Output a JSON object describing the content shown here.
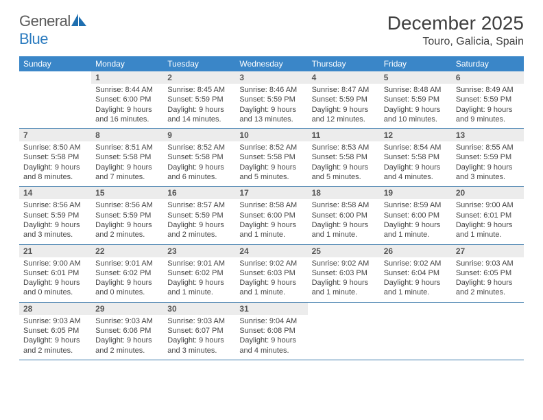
{
  "logo": {
    "text1": "General",
    "text2": "Blue"
  },
  "title": "December 2025",
  "location": "Touro, Galicia, Spain",
  "colors": {
    "header_bg": "#3a86c8",
    "daynum_bg": "#ececec",
    "border": "#3a78aa",
    "logo_blue": "#2b7bbf",
    "text": "#404040"
  },
  "day_names": [
    "Sunday",
    "Monday",
    "Tuesday",
    "Wednesday",
    "Thursday",
    "Friday",
    "Saturday"
  ],
  "weeks": [
    [
      null,
      {
        "n": "1",
        "sr": "8:44 AM",
        "ss": "6:00 PM",
        "dl": "9 hours and 16 minutes."
      },
      {
        "n": "2",
        "sr": "8:45 AM",
        "ss": "5:59 PM",
        "dl": "9 hours and 14 minutes."
      },
      {
        "n": "3",
        "sr": "8:46 AM",
        "ss": "5:59 PM",
        "dl": "9 hours and 13 minutes."
      },
      {
        "n": "4",
        "sr": "8:47 AM",
        "ss": "5:59 PM",
        "dl": "9 hours and 12 minutes."
      },
      {
        "n": "5",
        "sr": "8:48 AM",
        "ss": "5:59 PM",
        "dl": "9 hours and 10 minutes."
      },
      {
        "n": "6",
        "sr": "8:49 AM",
        "ss": "5:59 PM",
        "dl": "9 hours and 9 minutes."
      }
    ],
    [
      {
        "n": "7",
        "sr": "8:50 AM",
        "ss": "5:58 PM",
        "dl": "9 hours and 8 minutes."
      },
      {
        "n": "8",
        "sr": "8:51 AM",
        "ss": "5:58 PM",
        "dl": "9 hours and 7 minutes."
      },
      {
        "n": "9",
        "sr": "8:52 AM",
        "ss": "5:58 PM",
        "dl": "9 hours and 6 minutes."
      },
      {
        "n": "10",
        "sr": "8:52 AM",
        "ss": "5:58 PM",
        "dl": "9 hours and 5 minutes."
      },
      {
        "n": "11",
        "sr": "8:53 AM",
        "ss": "5:58 PM",
        "dl": "9 hours and 5 minutes."
      },
      {
        "n": "12",
        "sr": "8:54 AM",
        "ss": "5:58 PM",
        "dl": "9 hours and 4 minutes."
      },
      {
        "n": "13",
        "sr": "8:55 AM",
        "ss": "5:59 PM",
        "dl": "9 hours and 3 minutes."
      }
    ],
    [
      {
        "n": "14",
        "sr": "8:56 AM",
        "ss": "5:59 PM",
        "dl": "9 hours and 3 minutes."
      },
      {
        "n": "15",
        "sr": "8:56 AM",
        "ss": "5:59 PM",
        "dl": "9 hours and 2 minutes."
      },
      {
        "n": "16",
        "sr": "8:57 AM",
        "ss": "5:59 PM",
        "dl": "9 hours and 2 minutes."
      },
      {
        "n": "17",
        "sr": "8:58 AM",
        "ss": "6:00 PM",
        "dl": "9 hours and 1 minute."
      },
      {
        "n": "18",
        "sr": "8:58 AM",
        "ss": "6:00 PM",
        "dl": "9 hours and 1 minute."
      },
      {
        "n": "19",
        "sr": "8:59 AM",
        "ss": "6:00 PM",
        "dl": "9 hours and 1 minute."
      },
      {
        "n": "20",
        "sr": "9:00 AM",
        "ss": "6:01 PM",
        "dl": "9 hours and 1 minute."
      }
    ],
    [
      {
        "n": "21",
        "sr": "9:00 AM",
        "ss": "6:01 PM",
        "dl": "9 hours and 0 minutes."
      },
      {
        "n": "22",
        "sr": "9:01 AM",
        "ss": "6:02 PM",
        "dl": "9 hours and 0 minutes."
      },
      {
        "n": "23",
        "sr": "9:01 AM",
        "ss": "6:02 PM",
        "dl": "9 hours and 1 minute."
      },
      {
        "n": "24",
        "sr": "9:02 AM",
        "ss": "6:03 PM",
        "dl": "9 hours and 1 minute."
      },
      {
        "n": "25",
        "sr": "9:02 AM",
        "ss": "6:03 PM",
        "dl": "9 hours and 1 minute."
      },
      {
        "n": "26",
        "sr": "9:02 AM",
        "ss": "6:04 PM",
        "dl": "9 hours and 1 minute."
      },
      {
        "n": "27",
        "sr": "9:03 AM",
        "ss": "6:05 PM",
        "dl": "9 hours and 2 minutes."
      }
    ],
    [
      {
        "n": "28",
        "sr": "9:03 AM",
        "ss": "6:05 PM",
        "dl": "9 hours and 2 minutes."
      },
      {
        "n": "29",
        "sr": "9:03 AM",
        "ss": "6:06 PM",
        "dl": "9 hours and 2 minutes."
      },
      {
        "n": "30",
        "sr": "9:03 AM",
        "ss": "6:07 PM",
        "dl": "9 hours and 3 minutes."
      },
      {
        "n": "31",
        "sr": "9:04 AM",
        "ss": "6:08 PM",
        "dl": "9 hours and 4 minutes."
      },
      null,
      null,
      null
    ]
  ],
  "labels": {
    "sunrise": "Sunrise:",
    "sunset": "Sunset:",
    "daylight": "Daylight:"
  }
}
